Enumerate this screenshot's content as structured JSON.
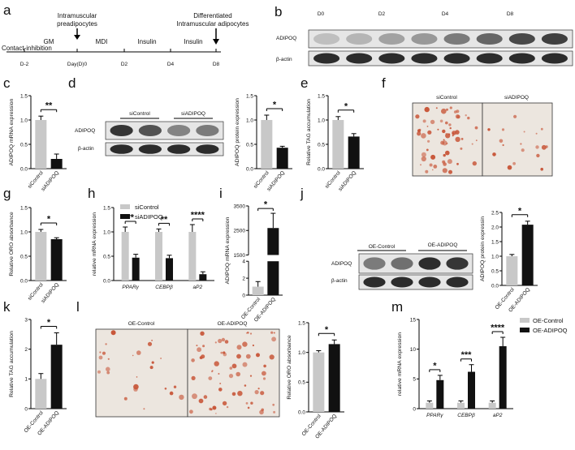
{
  "colors": {
    "grey": "#c8c8c8",
    "black": "#111111",
    "blot_bg": "#e6e6e6",
    "band": "#222222",
    "stain_bg": "#ece6df",
    "lipid": "#c8573a"
  },
  "panel_letters": {
    "a": "a",
    "b": "b",
    "c": "c",
    "d": "d",
    "e": "e",
    "f": "f",
    "g": "g",
    "h": "h",
    "i": "i",
    "j": "j",
    "k": "k",
    "l": "l",
    "m": "m"
  },
  "timeline": {
    "days": [
      "D-2",
      "Day(D)0",
      "D2",
      "D4",
      "D8"
    ],
    "top_left": "Intramuscular",
    "top_left2": "preadipocytes",
    "top_right": "Differentiated",
    "top_right2": "Intramuscular adipocytes",
    "stage_labels": [
      "GM",
      "MDI",
      "Insulin",
      "Insulin"
    ],
    "bottom_left": "Contact-inhibition"
  },
  "blot_b": {
    "columns": [
      "D0",
      "D2",
      "D4",
      "D8"
    ],
    "rows": [
      "ADIPOQ",
      "β-actin"
    ],
    "adipoq_intensity": [
      0.2,
      0.25,
      0.35,
      0.4,
      0.55,
      0.65,
      0.8,
      0.85
    ],
    "actin_intensity": [
      0.95,
      0.95,
      0.95,
      0.95,
      0.95,
      0.95,
      0.95,
      0.95
    ]
  },
  "blot_d": {
    "columns": [
      "siControl",
      "siADIPOQ"
    ],
    "rows": [
      "ADIPOQ",
      "β-actin"
    ],
    "adipoq_intensity": [
      0.9,
      0.75,
      0.5,
      0.55
    ],
    "actin_intensity": [
      0.95,
      0.95,
      0.95,
      0.95
    ]
  },
  "blot_j": {
    "columns": [
      "OE-Control",
      "OE-ADIPOQ"
    ],
    "rows": [
      "ADIPOQ",
      "β-actin"
    ],
    "adipoq_intensity": [
      0.55,
      0.6,
      0.95,
      0.9
    ],
    "actin_intensity": [
      0.95,
      0.95,
      0.95,
      0.95
    ]
  },
  "stain_f": {
    "labels": [
      "siControl",
      "siADIPOQ"
    ],
    "density": [
      0.9,
      0.25
    ]
  },
  "stain_l": {
    "labels": [
      "OE-Control",
      "OE-ADIPOQ"
    ],
    "density": [
      0.35,
      0.95
    ]
  },
  "legend_h": [
    "siControl",
    "siADIPOQ"
  ],
  "legend_m": [
    "OE-Control",
    "OE-ADIPOQ"
  ],
  "chart_data": [
    {
      "id": "c",
      "type": "bar",
      "categories": [
        "siControl",
        "siADIPOQ"
      ],
      "values": [
        1.0,
        0.2
      ],
      "errors": [
        0.08,
        0.1
      ],
      "ylabel": "ADIPOQ mRNA expression",
      "ylim": [
        0,
        1.5
      ],
      "yticks": [
        "0.0",
        "0.5",
        "1.0",
        "1.5"
      ],
      "ytick_values": [
        0,
        0.5,
        1.0,
        1.5
      ],
      "significance": "**"
    },
    {
      "id": "d",
      "type": "bar",
      "categories": [
        "siControl",
        "siADIPOQ"
      ],
      "values": [
        1.0,
        0.43
      ],
      "errors": [
        0.1,
        0.03
      ],
      "ylabel": "ADIPOQ protein expression",
      "ylim": [
        0,
        1.5
      ],
      "yticks": [
        "0.0",
        "0.5",
        "1.0",
        "1.5"
      ],
      "ytick_values": [
        0,
        0.5,
        1.0,
        1.5
      ],
      "significance": "*"
    },
    {
      "id": "e",
      "type": "bar",
      "categories": [
        "siControl",
        "siADIPOQ"
      ],
      "values": [
        1.0,
        0.66
      ],
      "errors": [
        0.07,
        0.06
      ],
      "ylabel": "Relative TAG accumulation",
      "ylim": [
        0,
        1.5
      ],
      "yticks": [
        "0.0",
        "0.5",
        "1.0",
        "1.5"
      ],
      "ytick_values": [
        0,
        0.5,
        1.0,
        1.5
      ],
      "significance": "*"
    },
    {
      "id": "g",
      "type": "bar",
      "categories": [
        "siControl",
        "siADIPOQ"
      ],
      "values": [
        1.0,
        0.85
      ],
      "errors": [
        0.05,
        0.03
      ],
      "ylabel": "Relative ORO absorbance",
      "ylim": [
        0,
        1.5
      ],
      "yticks": [
        "0.0",
        "0.5",
        "1.0",
        "1.5"
      ],
      "ytick_values": [
        0,
        0.5,
        1.0,
        1.5
      ],
      "significance": "*"
    },
    {
      "id": "h",
      "type": "bar",
      "categories": [
        "PPARγ",
        "CEBPβ",
        "aP2"
      ],
      "series": [
        {
          "name": "siControl",
          "values": [
            1.0,
            1.0,
            1.0
          ],
          "errors": [
            0.1,
            0.06,
            0.15
          ]
        },
        {
          "name": "siADIPOQ",
          "values": [
            0.47,
            0.46,
            0.13
          ],
          "errors": [
            0.07,
            0.06,
            0.05
          ]
        }
      ],
      "ylabel": "relative mRNA expression",
      "ylim": [
        0,
        1.5
      ],
      "yticks": [
        "0.0",
        "0.5",
        "1.0",
        "1.5"
      ],
      "ytick_values": [
        0,
        0.5,
        1.0,
        1.5
      ],
      "significance": [
        "**",
        "**",
        "****"
      ]
    },
    {
      "id": "i",
      "type": "bar",
      "categories": [
        "OE-Control",
        "OE-ADIPOQ"
      ],
      "values": [
        1.0,
        2600
      ],
      "errors": [
        0.6,
        600
      ],
      "ylabel": "ADIPOQ mRNA expression",
      "yticks": [
        "0",
        "2",
        "4",
        "1500",
        "2500",
        "3500"
      ],
      "axis_break": true,
      "significance": "*"
    },
    {
      "id": "j",
      "type": "bar",
      "categories": [
        "OE-Control",
        "OE-ADIPOQ"
      ],
      "values": [
        1.0,
        2.08
      ],
      "errors": [
        0.06,
        0.12
      ],
      "ylabel": "ADIPOQ protein expressin",
      "ylim": [
        0,
        2.5
      ],
      "yticks": [
        "0.0",
        "0.5",
        "1.0",
        "1.5",
        "2.0",
        "2.5"
      ],
      "ytick_values": [
        0,
        0.5,
        1.0,
        1.5,
        2.0,
        2.5
      ],
      "significance": "*"
    },
    {
      "id": "k",
      "type": "bar",
      "categories": [
        "OE-Control",
        "OE-ADIPOQ"
      ],
      "values": [
        1.0,
        2.15
      ],
      "errors": [
        0.18,
        0.4
      ],
      "ylabel": "Relative TAG accumulation",
      "ylim": [
        0,
        3
      ],
      "yticks": [
        "0",
        "1",
        "2",
        "3"
      ],
      "ytick_values": [
        0,
        1,
        2,
        3
      ],
      "significance": "*"
    },
    {
      "id": "l",
      "type": "bar",
      "categories": [
        "OE-Control",
        "OE-ADIPOQ"
      ],
      "values": [
        1.0,
        1.14
      ],
      "errors": [
        0.03,
        0.07
      ],
      "ylabel": "Relative ORO absorbance",
      "ylim": [
        0,
        1.5
      ],
      "yticks": [
        "0.0",
        "0.5",
        "1.0",
        "1.5"
      ],
      "ytick_values": [
        0,
        0.5,
        1.0,
        1.5
      ],
      "significance": "*"
    },
    {
      "id": "m",
      "type": "bar",
      "categories": [
        "PPARγ",
        "CEBPβ",
        "aP2"
      ],
      "series": [
        {
          "name": "OE-Control",
          "values": [
            1.0,
            1.0,
            1.0
          ],
          "errors": [
            0.3,
            0.3,
            0.3
          ]
        },
        {
          "name": "OE-ADIPOQ",
          "values": [
            4.8,
            6.2,
            10.5
          ],
          "errors": [
            0.8,
            1.2,
            1.5
          ]
        }
      ],
      "ylabel": "relative mRNA expression",
      "ylim": [
        0,
        15
      ],
      "yticks": [
        "0",
        "5",
        "10",
        "15"
      ],
      "ytick_values": [
        0,
        5,
        10,
        15
      ],
      "significance": [
        "*",
        "***",
        "****"
      ]
    }
  ]
}
